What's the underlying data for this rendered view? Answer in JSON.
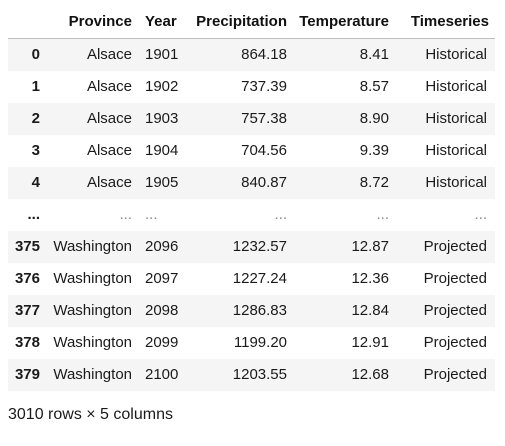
{
  "table": {
    "headers": {
      "index": "",
      "province": "Province",
      "year": "Year",
      "precipitation": "Precipitation",
      "temperature": "Temperature",
      "timeseries": "Timeseries"
    },
    "rows": [
      {
        "index": "0",
        "province": "Alsace",
        "year": "1901",
        "precipitation": "864.18",
        "temperature": "8.41",
        "timeseries": "Historical"
      },
      {
        "index": "1",
        "province": "Alsace",
        "year": "1902",
        "precipitation": "737.39",
        "temperature": "8.57",
        "timeseries": "Historical"
      },
      {
        "index": "2",
        "province": "Alsace",
        "year": "1903",
        "precipitation": "757.38",
        "temperature": "8.90",
        "timeseries": "Historical"
      },
      {
        "index": "3",
        "province": "Alsace",
        "year": "1904",
        "precipitation": "704.56",
        "temperature": "9.39",
        "timeseries": "Historical"
      },
      {
        "index": "4",
        "province": "Alsace",
        "year": "1905",
        "precipitation": "840.87",
        "temperature": "8.72",
        "timeseries": "Historical"
      },
      {
        "index": "...",
        "province": "...",
        "year": "...",
        "precipitation": "...",
        "temperature": "...",
        "timeseries": "..."
      },
      {
        "index": "375",
        "province": "Washington",
        "year": "2096",
        "precipitation": "1232.57",
        "temperature": "12.87",
        "timeseries": "Projected"
      },
      {
        "index": "376",
        "province": "Washington",
        "year": "2097",
        "precipitation": "1227.24",
        "temperature": "12.36",
        "timeseries": "Projected"
      },
      {
        "index": "377",
        "province": "Washington",
        "year": "2098",
        "precipitation": "1286.83",
        "temperature": "12.84",
        "timeseries": "Projected"
      },
      {
        "index": "378",
        "province": "Washington",
        "year": "2099",
        "precipitation": "1199.20",
        "temperature": "12.91",
        "timeseries": "Projected"
      },
      {
        "index": "379",
        "province": "Washington",
        "year": "2100",
        "precipitation": "1203.55",
        "temperature": "12.68",
        "timeseries": "Projected"
      }
    ]
  },
  "summary": "3010 rows × 5 columns"
}
